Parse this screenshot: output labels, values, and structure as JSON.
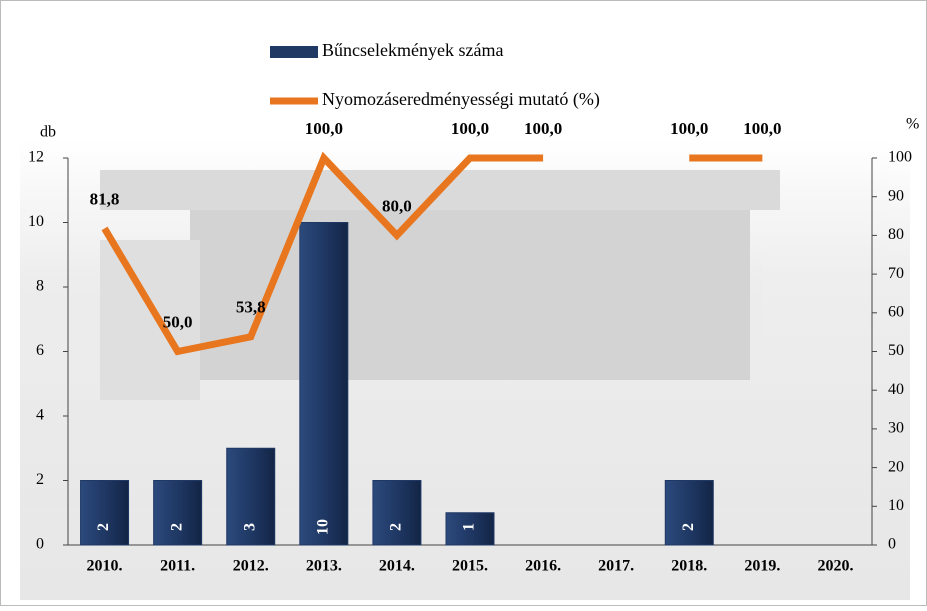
{
  "chart_data": {
    "type": "bar-line",
    "y_label": "db",
    "y2_label": "%",
    "categories": [
      "2010.",
      "2011.",
      "2012.",
      "2013.",
      "2014.",
      "2015.",
      "2016.",
      "2017.",
      "2018.",
      "2019.",
      "2020."
    ],
    "series": [
      {
        "name": "Bűncselekmények száma",
        "type": "bar",
        "color": "#1f3864",
        "values": [
          2,
          2,
          3,
          10,
          2,
          1,
          null,
          null,
          2,
          null,
          null
        ]
      },
      {
        "name": "Nyomozáseredményességi mutató (%)",
        "type": "line",
        "color": "#e8761e",
        "axis": "y2",
        "values": [
          81.8,
          50.0,
          53.8,
          100.0,
          80.0,
          100.0,
          100.0,
          null,
          100.0,
          100.0,
          null
        ],
        "value_labels": [
          "81,8",
          "50,0",
          "53,8",
          "100,0",
          "80,0",
          "100,0",
          "100,0",
          null,
          "100,0",
          "100,0",
          null
        ]
      }
    ],
    "ylim": [
      0,
      12
    ],
    "yticks": [
      0,
      2,
      4,
      6,
      8,
      10,
      12
    ],
    "y2lim": [
      0,
      100
    ],
    "y2ticks": [
      0,
      10,
      20,
      30,
      40,
      50,
      60,
      70,
      80,
      90,
      100
    ]
  }
}
